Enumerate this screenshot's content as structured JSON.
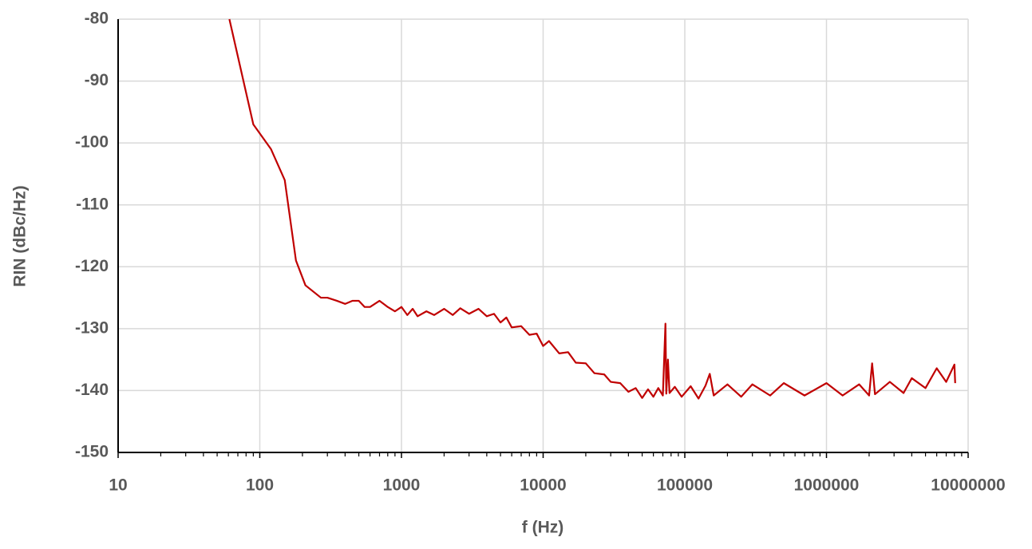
{
  "chart_data": {
    "type": "line",
    "xlabel": "f (Hz)",
    "ylabel": "RIN (dBc/Hz)",
    "xscale": "log",
    "grid": true,
    "xlim": [
      10,
      10000000
    ],
    "xticks": [
      10,
      100,
      1000,
      10000,
      100000,
      1000000,
      10000000
    ],
    "ylim": [
      -150,
      -80
    ],
    "yticks": [
      -150,
      -140,
      -130,
      -120,
      -110,
      -100,
      -90,
      -80
    ],
    "series": [
      {
        "color": "#c00000",
        "x": [
          61,
          90,
          120,
          150,
          180,
          210,
          270,
          300,
          350,
          400,
          450,
          500,
          550,
          600,
          700,
          800,
          900,
          1000,
          1100,
          1200,
          1300,
          1500,
          1700,
          2000,
          2300,
          2600,
          3000,
          3500,
          4000,
          4500,
          5000,
          5500,
          6000,
          7000,
          8000,
          9000,
          10000,
          11000,
          13000,
          15000,
          17000,
          20000,
          23000,
          27000,
          30000,
          35000,
          40000,
          45000,
          50000,
          55000,
          60000,
          65000,
          70000,
          72000,
          73000,
          74000,
          76000,
          78000,
          85000,
          95000,
          110000,
          125000,
          140000,
          150000,
          160000,
          200000,
          250000,
          300000,
          400000,
          500000,
          700000,
          1000000,
          1300000,
          1700000,
          2000000,
          2100000,
          2200000,
          2800000,
          3500000,
          4000000,
          5000000,
          6000000,
          7000000,
          8000000,
          8100000
        ],
        "values": [
          -80,
          -97,
          -101,
          -106,
          -119,
          -123,
          -125,
          -125,
          -125.5,
          -126,
          -125.5,
          -125.5,
          -126.5,
          -126.5,
          -125.5,
          -126.5,
          -127.2,
          -126.5,
          -127.8,
          -126.8,
          -128,
          -127.2,
          -127.8,
          -126.8,
          -127.8,
          -126.7,
          -127.6,
          -126.8,
          -128,
          -127.6,
          -129,
          -128.2,
          -129.8,
          -129.6,
          -131,
          -130.8,
          -132.8,
          -132,
          -134,
          -133.8,
          -135.5,
          -135.6,
          -137.2,
          -137.4,
          -138.6,
          -138.8,
          -140.2,
          -139.6,
          -141.2,
          -139.8,
          -141,
          -139.6,
          -140.8,
          -133,
          -129.2,
          -140.5,
          -135,
          -140.4,
          -139.4,
          -141,
          -139.3,
          -141.3,
          -139.2,
          -137.3,
          -140.8,
          -139,
          -141,
          -139,
          -140.8,
          -138.8,
          -140.8,
          -138.8,
          -140.8,
          -139,
          -140.8,
          -135.6,
          -140.6,
          -138.6,
          -140.4,
          -138,
          -139.6,
          -136.4,
          -138.6,
          -135.8,
          -138.8
        ]
      }
    ]
  }
}
